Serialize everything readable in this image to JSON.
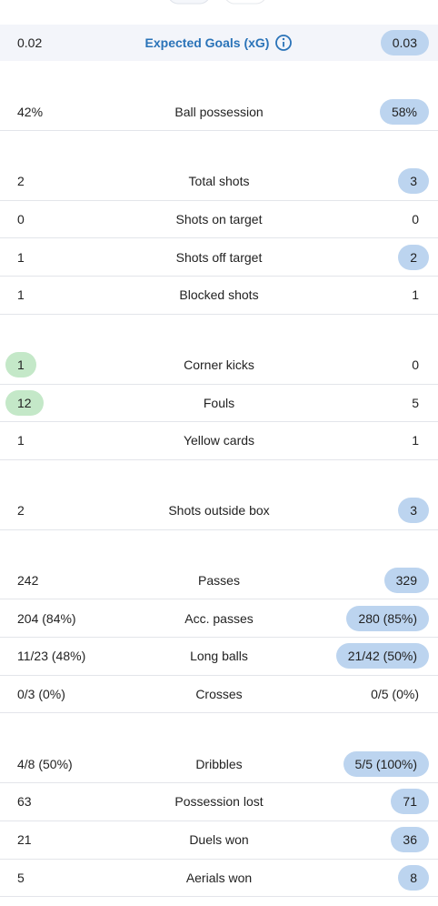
{
  "header_row": {
    "home": "0.02",
    "label": "Expected Goals (xG)",
    "away": "0.03",
    "highlight": "away"
  },
  "groups": [
    {
      "rows": [
        {
          "home": "42%",
          "label": "Ball possession",
          "away": "58%",
          "highlight": "away"
        }
      ]
    },
    {
      "rows": [
        {
          "home": "2",
          "label": "Total shots",
          "away": "3",
          "highlight": "away"
        },
        {
          "home": "0",
          "label": "Shots on target",
          "away": "0",
          "highlight": null
        },
        {
          "home": "1",
          "label": "Shots off target",
          "away": "2",
          "highlight": "away"
        },
        {
          "home": "1",
          "label": "Blocked shots",
          "away": "1",
          "highlight": null
        }
      ]
    },
    {
      "rows": [
        {
          "home": "1",
          "label": "Corner kicks",
          "away": "0",
          "highlight": "home"
        },
        {
          "home": "12",
          "label": "Fouls",
          "away": "5",
          "highlight": "home"
        },
        {
          "home": "1",
          "label": "Yellow cards",
          "away": "1",
          "highlight": null
        }
      ]
    },
    {
      "rows": [
        {
          "home": "2",
          "label": "Shots outside box",
          "away": "3",
          "highlight": "away"
        }
      ]
    },
    {
      "rows": [
        {
          "home": "242",
          "label": "Passes",
          "away": "329",
          "highlight": "away"
        },
        {
          "home": "204 (84%)",
          "label": "Acc. passes",
          "away": "280 (85%)",
          "highlight": "away"
        },
        {
          "home": "11/23 (48%)",
          "label": "Long balls",
          "away": "21/42 (50%)",
          "highlight": "away"
        },
        {
          "home": "0/3 (0%)",
          "label": "Crosses",
          "away": "0/5 (0%)",
          "highlight": null
        }
      ]
    },
    {
      "rows": [
        {
          "home": "4/8 (50%)",
          "label": "Dribbles",
          "away": "5/5 (100%)",
          "highlight": "away"
        },
        {
          "home": "63",
          "label": "Possession lost",
          "away": "71",
          "highlight": "away"
        },
        {
          "home": "21",
          "label": "Duels won",
          "away": "36",
          "highlight": "away"
        },
        {
          "home": "5",
          "label": "Aerials won",
          "away": "8",
          "highlight": "away"
        }
      ]
    }
  ],
  "colors": {
    "home": "#c4e8c8",
    "away": "#bcd4ef"
  }
}
